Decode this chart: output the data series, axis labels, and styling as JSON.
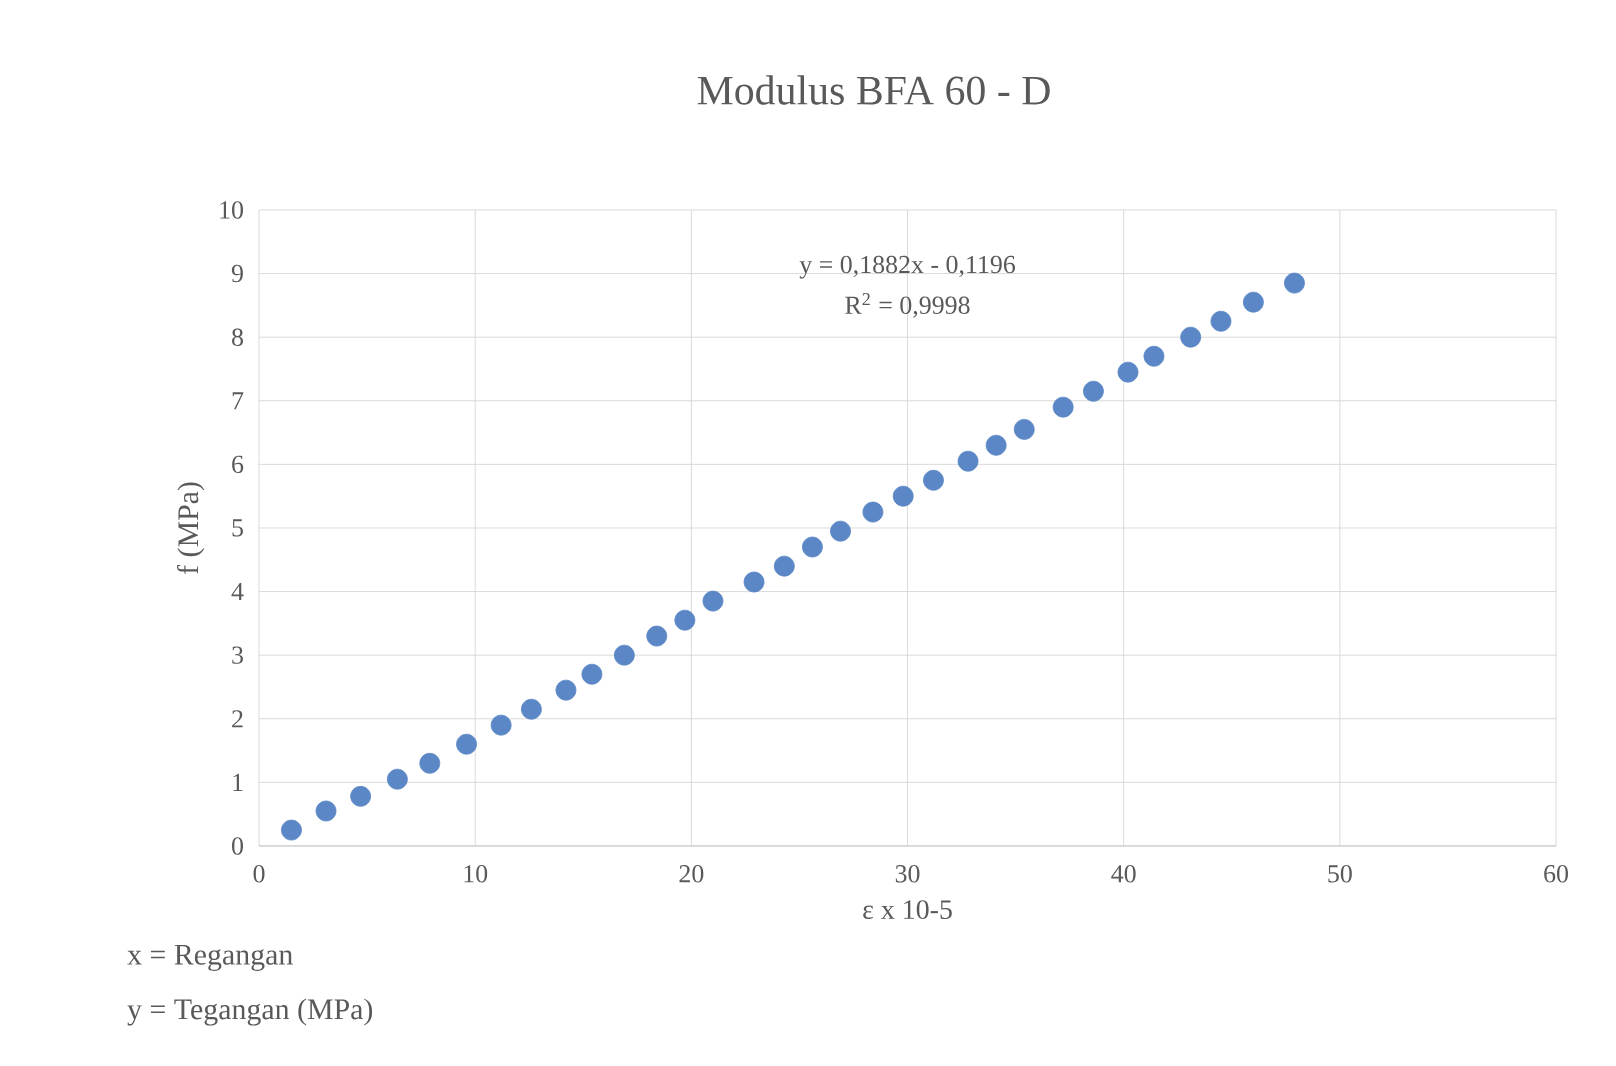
{
  "chart_data": {
    "type": "scatter",
    "title": "Modulus BFA 60 - D",
    "xlabel": "ε x 10-5",
    "ylabel": "f (MPa)",
    "annotations": [
      "y = 0,1882x - 0,1196",
      "R$^{2}$ = 0,9998",
      "x = Regangan",
      "y = Tegangan (MPa)"
    ],
    "xlim": [
      0,
      60
    ],
    "xticks": [
      0,
      10,
      20,
      30,
      40,
      50,
      60
    ],
    "ylim": [
      0,
      10
    ],
    "yticks": [
      0,
      1,
      2,
      3,
      4,
      5,
      6,
      7,
      8,
      9,
      10
    ],
    "grid": true,
    "marker": "circle",
    "series": [
      {
        "color": "#5b87c6",
        "x": [
          1.5,
          3.1,
          4.7,
          6.4,
          7.9,
          9.6,
          11.2,
          12.6,
          14.2,
          15.4,
          16.9,
          18.4,
          19.7,
          21.0,
          22.9,
          24.3,
          25.6,
          26.9,
          28.4,
          29.8,
          31.2,
          32.8,
          34.1,
          35.4,
          37.2,
          38.6,
          40.2,
          41.4,
          43.1,
          44.5,
          46.0,
          47.9
        ],
        "values": [
          0.25,
          0.55,
          0.78,
          1.05,
          1.3,
          1.6,
          1.9,
          2.15,
          2.45,
          2.7,
          3.0,
          3.3,
          3.55,
          3.85,
          4.15,
          4.4,
          4.7,
          4.95,
          5.25,
          5.5,
          5.75,
          6.05,
          6.3,
          6.55,
          6.9,
          7.15,
          7.45,
          7.7,
          8.0,
          8.25,
          8.55,
          8.85
        ]
      }
    ]
  }
}
